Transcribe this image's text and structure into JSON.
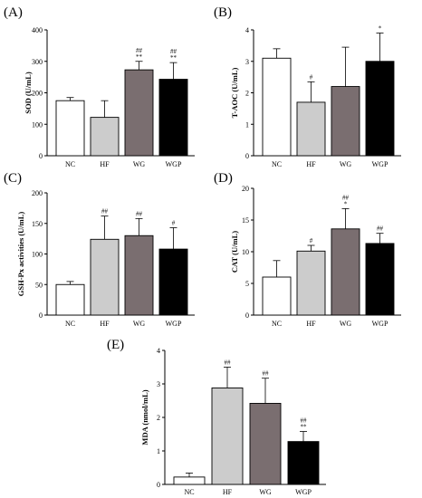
{
  "chart_data": [
    {
      "type": "bar",
      "panel_label": "(A)",
      "ylabel": "SOD (U/mL)",
      "categories": [
        "NC",
        "HF",
        "WG",
        "WGP"
      ],
      "values": [
        175,
        122,
        273,
        243
      ],
      "errors": [
        10,
        53,
        27,
        53
      ],
      "significance": [
        [],
        [],
        [
          "##",
          "**"
        ],
        [
          "##",
          "**"
        ]
      ],
      "ylim": [
        0,
        400
      ],
      "yticks": [
        "0",
        "100",
        "200",
        "300",
        "400"
      ],
      "colors": [
        "#ffffff",
        "#cccccc",
        "#7a6e70",
        "#000000"
      ]
    },
    {
      "type": "bar",
      "panel_label": "(B)",
      "ylabel": "T-AOC (U/mL)",
      "categories": [
        "NC",
        "HF",
        "WG",
        "WGP"
      ],
      "values": [
        3.1,
        1.7,
        2.2,
        3.0
      ],
      "errors": [
        0.3,
        0.65,
        1.25,
        0.9
      ],
      "significance": [
        [],
        [
          "#"
        ],
        [],
        [
          "*"
        ]
      ],
      "ylim": [
        0,
        4
      ],
      "yticks": [
        "0",
        "1",
        "2",
        "3",
        "4"
      ],
      "colors": [
        "#ffffff",
        "#cccccc",
        "#7a6e70",
        "#000000"
      ]
    },
    {
      "type": "bar",
      "panel_label": "(C)",
      "ylabel": "GSH-Px activities (U/mL)",
      "categories": [
        "NC",
        "HF",
        "WG",
        "WGP"
      ],
      "values": [
        50,
        124,
        130,
        108
      ],
      "errors": [
        5,
        38,
        28,
        35
      ],
      "significance": [
        [],
        [
          "##"
        ],
        [
          "##"
        ],
        [
          "#"
        ]
      ],
      "ylim": [
        0,
        200
      ],
      "yticks": [
        "0",
        "50",
        "100",
        "150",
        "200"
      ],
      "colors": [
        "#ffffff",
        "#cccccc",
        "#7a6e70",
        "#000000"
      ]
    },
    {
      "type": "bar",
      "panel_label": "(D)",
      "ylabel": "CAT (U/mL)",
      "categories": [
        "NC",
        "HF",
        "WG",
        "WGP"
      ],
      "values": [
        6.0,
        10.1,
        13.6,
        11.3
      ],
      "errors": [
        2.6,
        0.9,
        3.2,
        1.6
      ],
      "significance": [
        [],
        [
          "#"
        ],
        [
          "##",
          "*"
        ],
        [
          "##"
        ]
      ],
      "ylim": [
        0,
        20
      ],
      "yticks": [
        "0",
        "5",
        "10",
        "15",
        "20"
      ],
      "colors": [
        "#ffffff",
        "#cccccc",
        "#7a6e70",
        "#000000"
      ]
    },
    {
      "type": "bar",
      "panel_label": "(E)",
      "ylabel": "MDA (nmol/mL)",
      "categories": [
        "NC",
        "HF",
        "WG",
        "WGP"
      ],
      "values": [
        0.22,
        2.88,
        2.42,
        1.28
      ],
      "errors": [
        0.12,
        0.62,
        0.75,
        0.3
      ],
      "significance": [
        [],
        [
          "##"
        ],
        [
          "##"
        ],
        [
          "##",
          "**"
        ]
      ],
      "ylim": [
        0,
        4
      ],
      "yticks": [
        "0",
        "1",
        "2",
        "3",
        "4"
      ],
      "colors": [
        "#ffffff",
        "#cccccc",
        "#7a6e70",
        "#000000"
      ]
    }
  ]
}
